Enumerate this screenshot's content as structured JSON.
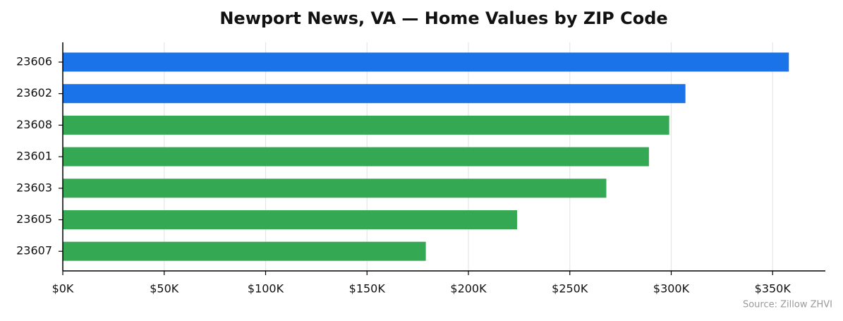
{
  "chart_data": {
    "type": "barh",
    "title": "Newport News, VA — Home Values by ZIP Code",
    "categories": [
      "23606",
      "23602",
      "23608",
      "23601",
      "23603",
      "23605",
      "23607"
    ],
    "values": [
      358000,
      307000,
      299000,
      289000,
      268000,
      224000,
      179000
    ],
    "colors": [
      "#1a73e8",
      "#1a73e8",
      "#34a853",
      "#34a853",
      "#34a853",
      "#34a853",
      "#34a853"
    ],
    "xlim": [
      0,
      376000
    ],
    "xticks": [
      {
        "value": 0,
        "label": "$0K"
      },
      {
        "value": 50000,
        "label": "$50K"
      },
      {
        "value": 100000,
        "label": "$100K"
      },
      {
        "value": 150000,
        "label": "$150K"
      },
      {
        "value": 200000,
        "label": "$200K"
      },
      {
        "value": 250000,
        "label": "$250K"
      },
      {
        "value": 300000,
        "label": "$300K"
      },
      {
        "value": 350000,
        "label": "$350K"
      }
    ],
    "grid": true,
    "note": "Source: Zillow ZHVI"
  }
}
